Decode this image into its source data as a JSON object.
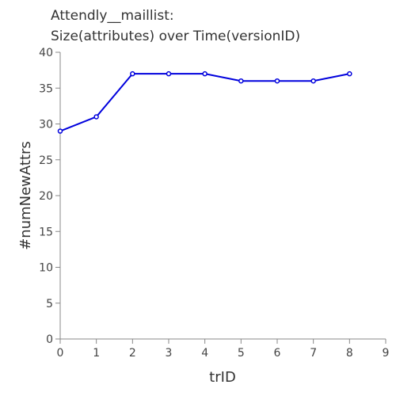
{
  "chart_data": {
    "type": "line",
    "title_lines": [
      "Attendly__maillist:",
      "Size(attributes) over Time(versionID)"
    ],
    "xlabel": "trID",
    "ylabel": "#numNewAttrs",
    "xlim": [
      0,
      9
    ],
    "ylim": [
      0,
      40
    ],
    "x_ticks": [
      "0",
      "1",
      "2",
      "3",
      "4",
      "5",
      "6",
      "7",
      "8",
      "9"
    ],
    "y_ticks": [
      "0",
      "5",
      "10",
      "15",
      "20",
      "25",
      "30",
      "35",
      "40"
    ],
    "grid": false,
    "legend": "none",
    "series": [
      {
        "color": "#0000dd",
        "x": [
          0,
          1,
          2,
          3,
          4,
          5,
          6,
          7,
          8
        ],
        "y": [
          29,
          31,
          37,
          37,
          37,
          36,
          36,
          36,
          37
        ]
      }
    ]
  }
}
